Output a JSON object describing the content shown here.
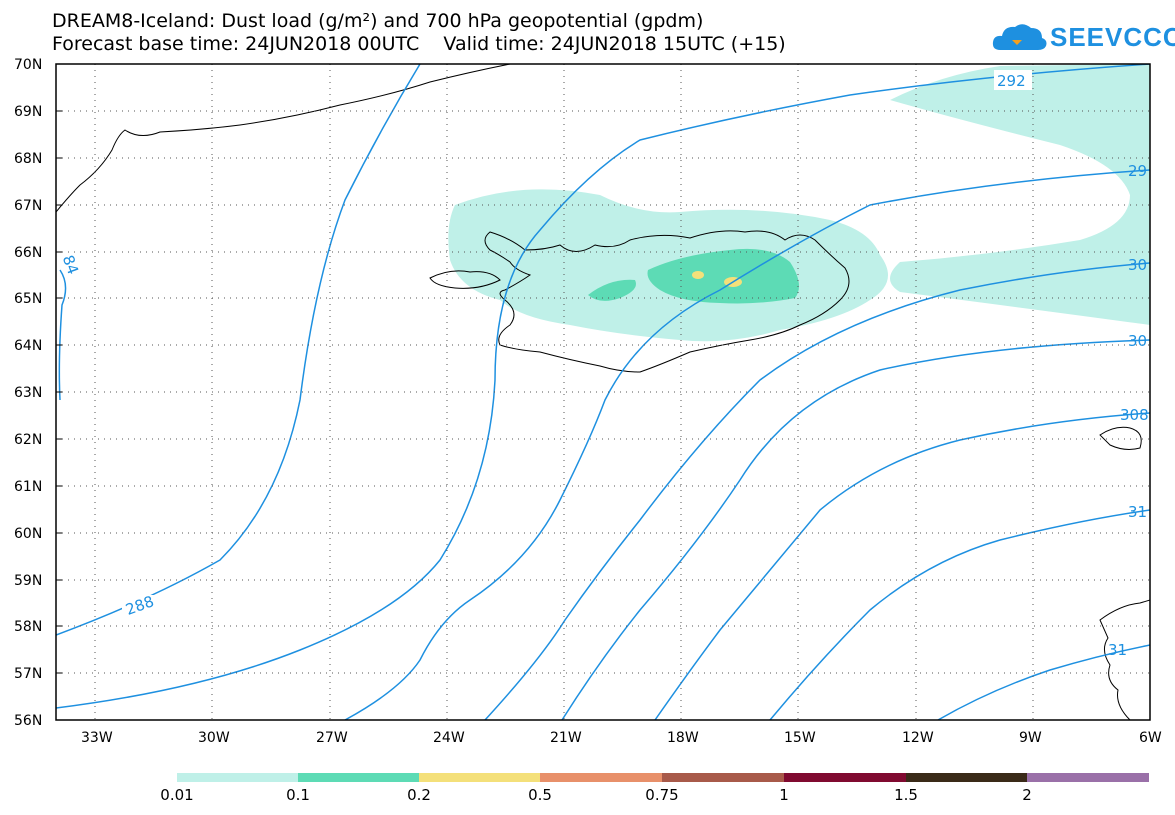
{
  "title": {
    "line1": "DREAM8-Iceland: Dust load (g/m²) and 700 hPa geopotential (gpdm)",
    "line2": "Forecast base time: 24JUN2018 00UTC    Valid time: 24JUN2018 15UTC (+15)"
  },
  "logo": {
    "text": "SEEVCCC",
    "icon": "cloud-logo-icon"
  },
  "axes": {
    "lat_labels": [
      "70N",
      "69N",
      "68N",
      "67N",
      "66N",
      "65N",
      "64N",
      "63N",
      "62N",
      "61N",
      "60N",
      "59N",
      "58N",
      "57N",
      "56N"
    ],
    "lon_labels": [
      "33W",
      "30W",
      "27W",
      "24W",
      "21W",
      "18W",
      "15W",
      "12W",
      "9W",
      "6W"
    ]
  },
  "contour_labels": [
    "288",
    "292",
    "29",
    "30",
    "30",
    "308",
    "31",
    "31",
    "84"
  ],
  "colorbar": {
    "labels": [
      "0.01",
      "0.1",
      "0.2",
      "0.5",
      "0.75",
      "1",
      "1.5",
      "2"
    ],
    "colors": [
      "#bff0e8",
      "#5ddbb5",
      "#f4e07a",
      "#e8906a",
      "#a85a4a",
      "#800a30",
      "#3a2a18",
      "#9a70a8"
    ]
  },
  "colors": {
    "contour": "#1e90e0",
    "dust_low": "#bff0e8",
    "dust_mid": "#5ddbb5",
    "dust_high": "#f4e07a"
  }
}
